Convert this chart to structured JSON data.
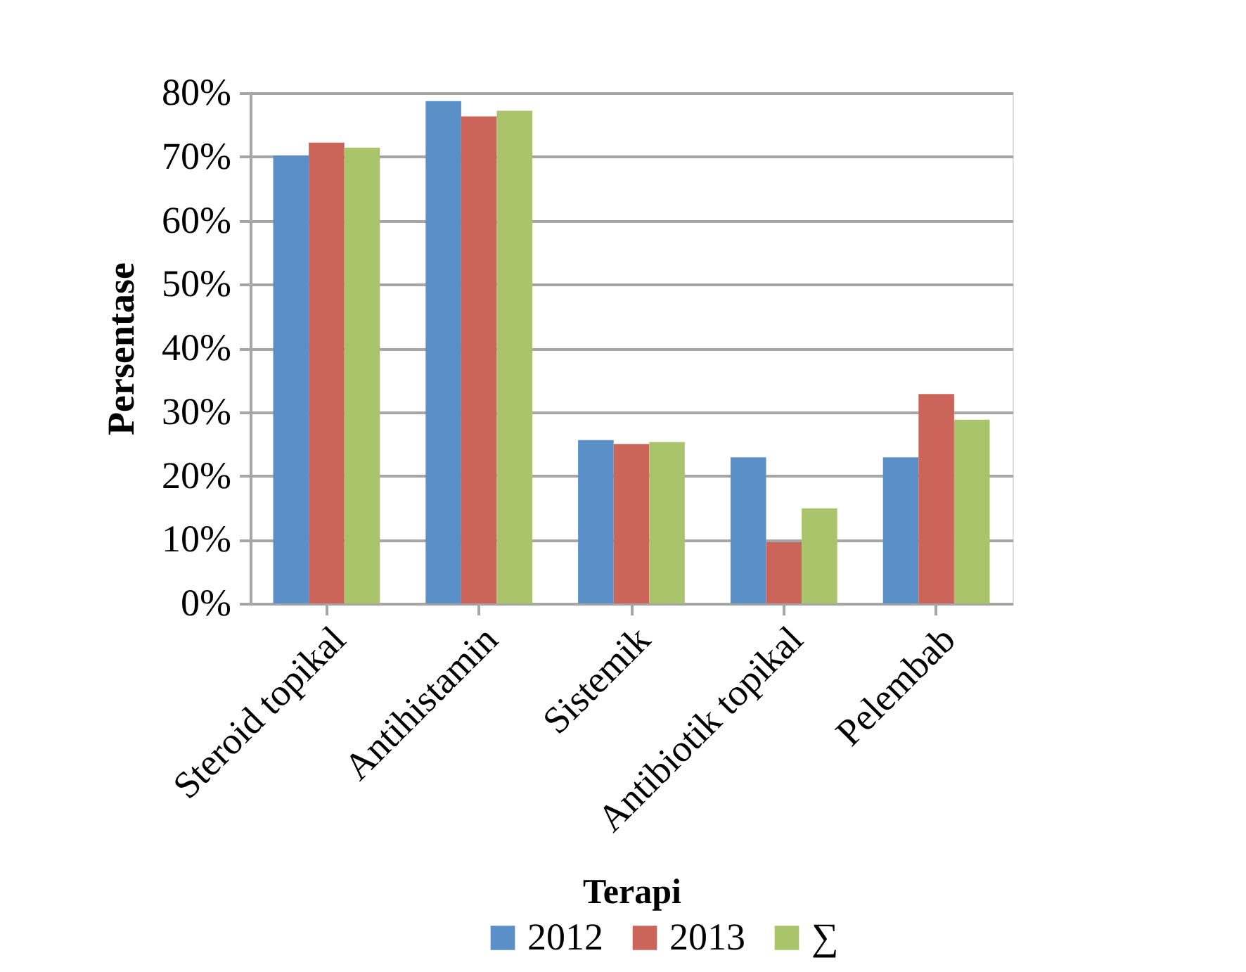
{
  "chart_data": {
    "type": "bar",
    "xlabel": "Terapi",
    "ylabel": "Persentase",
    "categories": [
      "Steroid topikal",
      "Antihistamin",
      "Sistemik",
      "Antibiotik topikal",
      "Pelembab"
    ],
    "series": [
      {
        "name": "2012",
        "color": "#5a8fc8",
        "values": [
          70.2,
          78.7,
          25.6,
          22.9,
          22.9
        ]
      },
      {
        "name": "2013",
        "color": "#cc6559",
        "values": [
          72.2,
          76.3,
          25.0,
          9.6,
          32.8
        ]
      },
      {
        "name": "∑",
        "color": "#a9c46b",
        "values": [
          71.4,
          77.2,
          25.3,
          14.9,
          28.8
        ]
      }
    ],
    "ylim": [
      0,
      80
    ],
    "yticks": [
      {
        "value": 0,
        "label": "0%"
      },
      {
        "value": 10,
        "label": "10%"
      },
      {
        "value": 20,
        "label": "20%"
      },
      {
        "value": 30,
        "label": "30%"
      },
      {
        "value": 40,
        "label": "40%"
      },
      {
        "value": 50,
        "label": "50%"
      },
      {
        "value": 60,
        "label": "60%"
      },
      {
        "value": 70,
        "label": "70%"
      },
      {
        "value": 80,
        "label": "80%"
      }
    ],
    "grid": "y",
    "legend": "bottom"
  }
}
